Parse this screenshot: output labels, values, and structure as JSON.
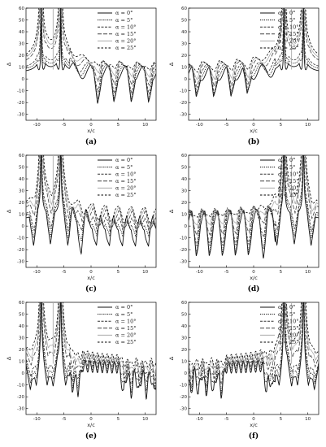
{
  "figure": {
    "panel_labels": [
      "(a)",
      "(b)",
      "(c)",
      "(d)",
      "(e)",
      "(f)"
    ]
  },
  "chart_data": [
    {
      "type": "line",
      "panel": "(a)",
      "xlabel": "x/c",
      "ylabel": "Δ",
      "xlim": [
        -12,
        12
      ],
      "ylim": [
        -35,
        60
      ],
      "xticks": [
        -10,
        -5,
        0,
        5,
        10
      ],
      "yticks": [
        -30,
        -20,
        -10,
        0,
        10,
        20,
        30,
        40,
        50,
        60
      ],
      "legend_position": "top-right",
      "series": [
        {
          "name": "α = 0°",
          "style": "solid-black"
        },
        {
          "name": "α = 5°",
          "style": "dotted-black"
        },
        {
          "name": "α = 10°",
          "style": "dashed-dark"
        },
        {
          "name": "α = 15°",
          "style": "longdash-dark"
        },
        {
          "name": "α = 20°",
          "style": "solid-lightgray"
        },
        {
          "name": "α = 25°",
          "style": "dashed-black"
        }
      ],
      "singularities_x": [
        -9.2,
        -5.6
      ],
      "light_spike_x": -7.0,
      "osc_region_x": [
        -4,
        12
      ],
      "cusps_x": [
        -9.2,
        -5.6,
        1.2,
        4.2,
        7.4,
        10.6
      ],
      "cusp_depth": -14,
      "osc_amplitude": 6,
      "osc_period": 3.2
    },
    {
      "type": "line",
      "panel": "(b)",
      "xlabel": "x/c",
      "ylabel": "Δ",
      "xlim": [
        -12,
        12
      ],
      "ylim": [
        -35,
        60
      ],
      "xticks": [
        -10,
        -5,
        0,
        5,
        10
      ],
      "yticks": [
        -30,
        -20,
        -10,
        0,
        10,
        20,
        30,
        40,
        50,
        60
      ],
      "legend_position": "top-right",
      "series": [
        {
          "name": "α = 0°",
          "style": "solid-black"
        },
        {
          "name": "α = 5°",
          "style": "dotted-black"
        },
        {
          "name": "α = 10°",
          "style": "dashed-dark"
        },
        {
          "name": "α = 15°",
          "style": "longdash-dark"
        },
        {
          "name": "α = 20°",
          "style": "solid-lightgray"
        },
        {
          "name": "α = 25°",
          "style": "dashed-black"
        }
      ],
      "singularities_x": [
        5.6,
        9.2
      ],
      "light_spike_x": 7.0,
      "osc_region_x": [
        -12,
        4
      ],
      "cusps_x": [
        -10.6,
        -7.4,
        -4.2,
        -1.2,
        5.6,
        9.2
      ],
      "cusp_depth": -14,
      "osc_amplitude": 6,
      "osc_period": 3.2
    },
    {
      "type": "line",
      "panel": "(c)",
      "xlabel": "x/c",
      "ylabel": "Δ",
      "xlim": [
        -12,
        12
      ],
      "ylim": [
        -35,
        60
      ],
      "xticks": [
        -10,
        -5,
        0,
        5,
        10
      ],
      "yticks": [
        -30,
        -20,
        -10,
        0,
        10,
        20,
        30,
        40,
        50,
        60
      ],
      "legend_position": "top-right",
      "series": [
        {
          "name": "α = 0°",
          "style": "solid-black"
        },
        {
          "name": "α = 5°",
          "style": "dotted-black"
        },
        {
          "name": "α = 10°",
          "style": "dashed-dark"
        },
        {
          "name": "α = 15°",
          "style": "longdash-dark"
        },
        {
          "name": "α = 20°",
          "style": "solid-lightgray"
        },
        {
          "name": "α = 25°",
          "style": "dashed-black"
        }
      ],
      "singularities_x": [
        -9.2,
        -5.6
      ],
      "light_spike_x": -7.0,
      "osc_region_x": [
        -4,
        12
      ],
      "cusps_x": [
        -10.6,
        -7.5,
        -4.3,
        -1.8,
        1.0,
        3.4,
        5.8,
        8.2,
        10.6
      ],
      "cusp_depth": -18,
      "osc_amplitude": 8,
      "osc_period": 2.4
    },
    {
      "type": "line",
      "panel": "(d)",
      "xlabel": "x/c",
      "ylabel": "Δ",
      "xlim": [
        -12,
        12
      ],
      "ylim": [
        -35,
        60
      ],
      "xticks": [
        -10,
        -5,
        0,
        5,
        10
      ],
      "yticks": [
        -30,
        -20,
        -10,
        0,
        10,
        20,
        30,
        40,
        50,
        60
      ],
      "legend_position": "top-right",
      "series": [
        {
          "name": "α = 0°",
          "style": "solid-black"
        },
        {
          "name": "α = 5°",
          "style": "dotted-black"
        },
        {
          "name": "α = 10°",
          "style": "dashed-dark"
        },
        {
          "name": "α = 15°",
          "style": "longdash-dark"
        },
        {
          "name": "α = 20°",
          "style": "solid-lightgray"
        },
        {
          "name": "α = 25°",
          "style": "dashed-black"
        }
      ],
      "singularities_x": [
        5.6,
        9.2
      ],
      "light_spike_x": 7.0,
      "osc_region_x": [
        -12,
        4
      ],
      "cusps_x": [
        -10.6,
        -8.2,
        -5.8,
        -3.4,
        -1.0,
        1.8,
        4.3,
        7.5,
        10.6
      ],
      "cusp_depth": -18,
      "osc_amplitude": 8,
      "osc_period": 2.4
    },
    {
      "type": "line",
      "panel": "(e)",
      "xlabel": "x/c",
      "ylabel": "Δ",
      "xlim": [
        -12,
        12
      ],
      "ylim": [
        -35,
        60
      ],
      "xticks": [
        -10,
        -5,
        0,
        5,
        10
      ],
      "yticks": [
        -30,
        -20,
        -10,
        0,
        10,
        20,
        30,
        40,
        50,
        60
      ],
      "legend_position": "top-right",
      "series": [
        {
          "name": "α = 0°",
          "style": "solid-black"
        },
        {
          "name": "α = 5°",
          "style": "dotted-black"
        },
        {
          "name": "α = 10°",
          "style": "dashed-dark"
        },
        {
          "name": "α = 15°",
          "style": "longdash-dark"
        },
        {
          "name": "α = 20°",
          "style": "solid-lightgray"
        },
        {
          "name": "α = 25°",
          "style": "dashed-black"
        }
      ],
      "singularities_x": [
        -9.2,
        -5.6
      ],
      "light_spike_x": -7.0,
      "osc_region_x": [
        -4,
        12
      ],
      "cusps_x": [
        -11.2,
        -10.1,
        -8.1,
        -7.0,
        -4.7,
        -3.5,
        -2.4,
        6.0,
        7.4,
        8.8,
        10.2,
        11.6
      ],
      "cusp_depth": -14,
      "osc_amplitude": 5,
      "osc_period": 0.9
    },
    {
      "type": "line",
      "panel": "(f)",
      "xlabel": "x/c",
      "ylabel": "Δ",
      "xlim": [
        -12,
        12
      ],
      "ylim": [
        -35,
        60
      ],
      "xticks": [
        -10,
        -5,
        0,
        5,
        10
      ],
      "yticks": [
        -30,
        -20,
        -10,
        0,
        10,
        20,
        30,
        40,
        50,
        60
      ],
      "legend_position": "top-right",
      "series": [
        {
          "name": "α = 0°",
          "style": "solid-black"
        },
        {
          "name": "α = 5°",
          "style": "dotted-black"
        },
        {
          "name": "α = 10°",
          "style": "dashed-dark"
        },
        {
          "name": "α = 15°",
          "style": "longdash-dark"
        },
        {
          "name": "α = 20°",
          "style": "solid-lightgray"
        },
        {
          "name": "α = 25°",
          "style": "dashed-black"
        }
      ],
      "singularities_x": [
        5.6,
        9.2
      ],
      "light_spike_x": 7.0,
      "osc_region_x": [
        -12,
        4
      ],
      "cusps_x": [
        -11.6,
        -10.2,
        -8.8,
        -7.4,
        -6.0,
        2.4,
        3.5,
        4.7,
        7.0,
        8.1,
        10.1,
        11.2
      ],
      "cusp_depth": -14,
      "osc_amplitude": 5,
      "osc_period": 0.9
    }
  ]
}
